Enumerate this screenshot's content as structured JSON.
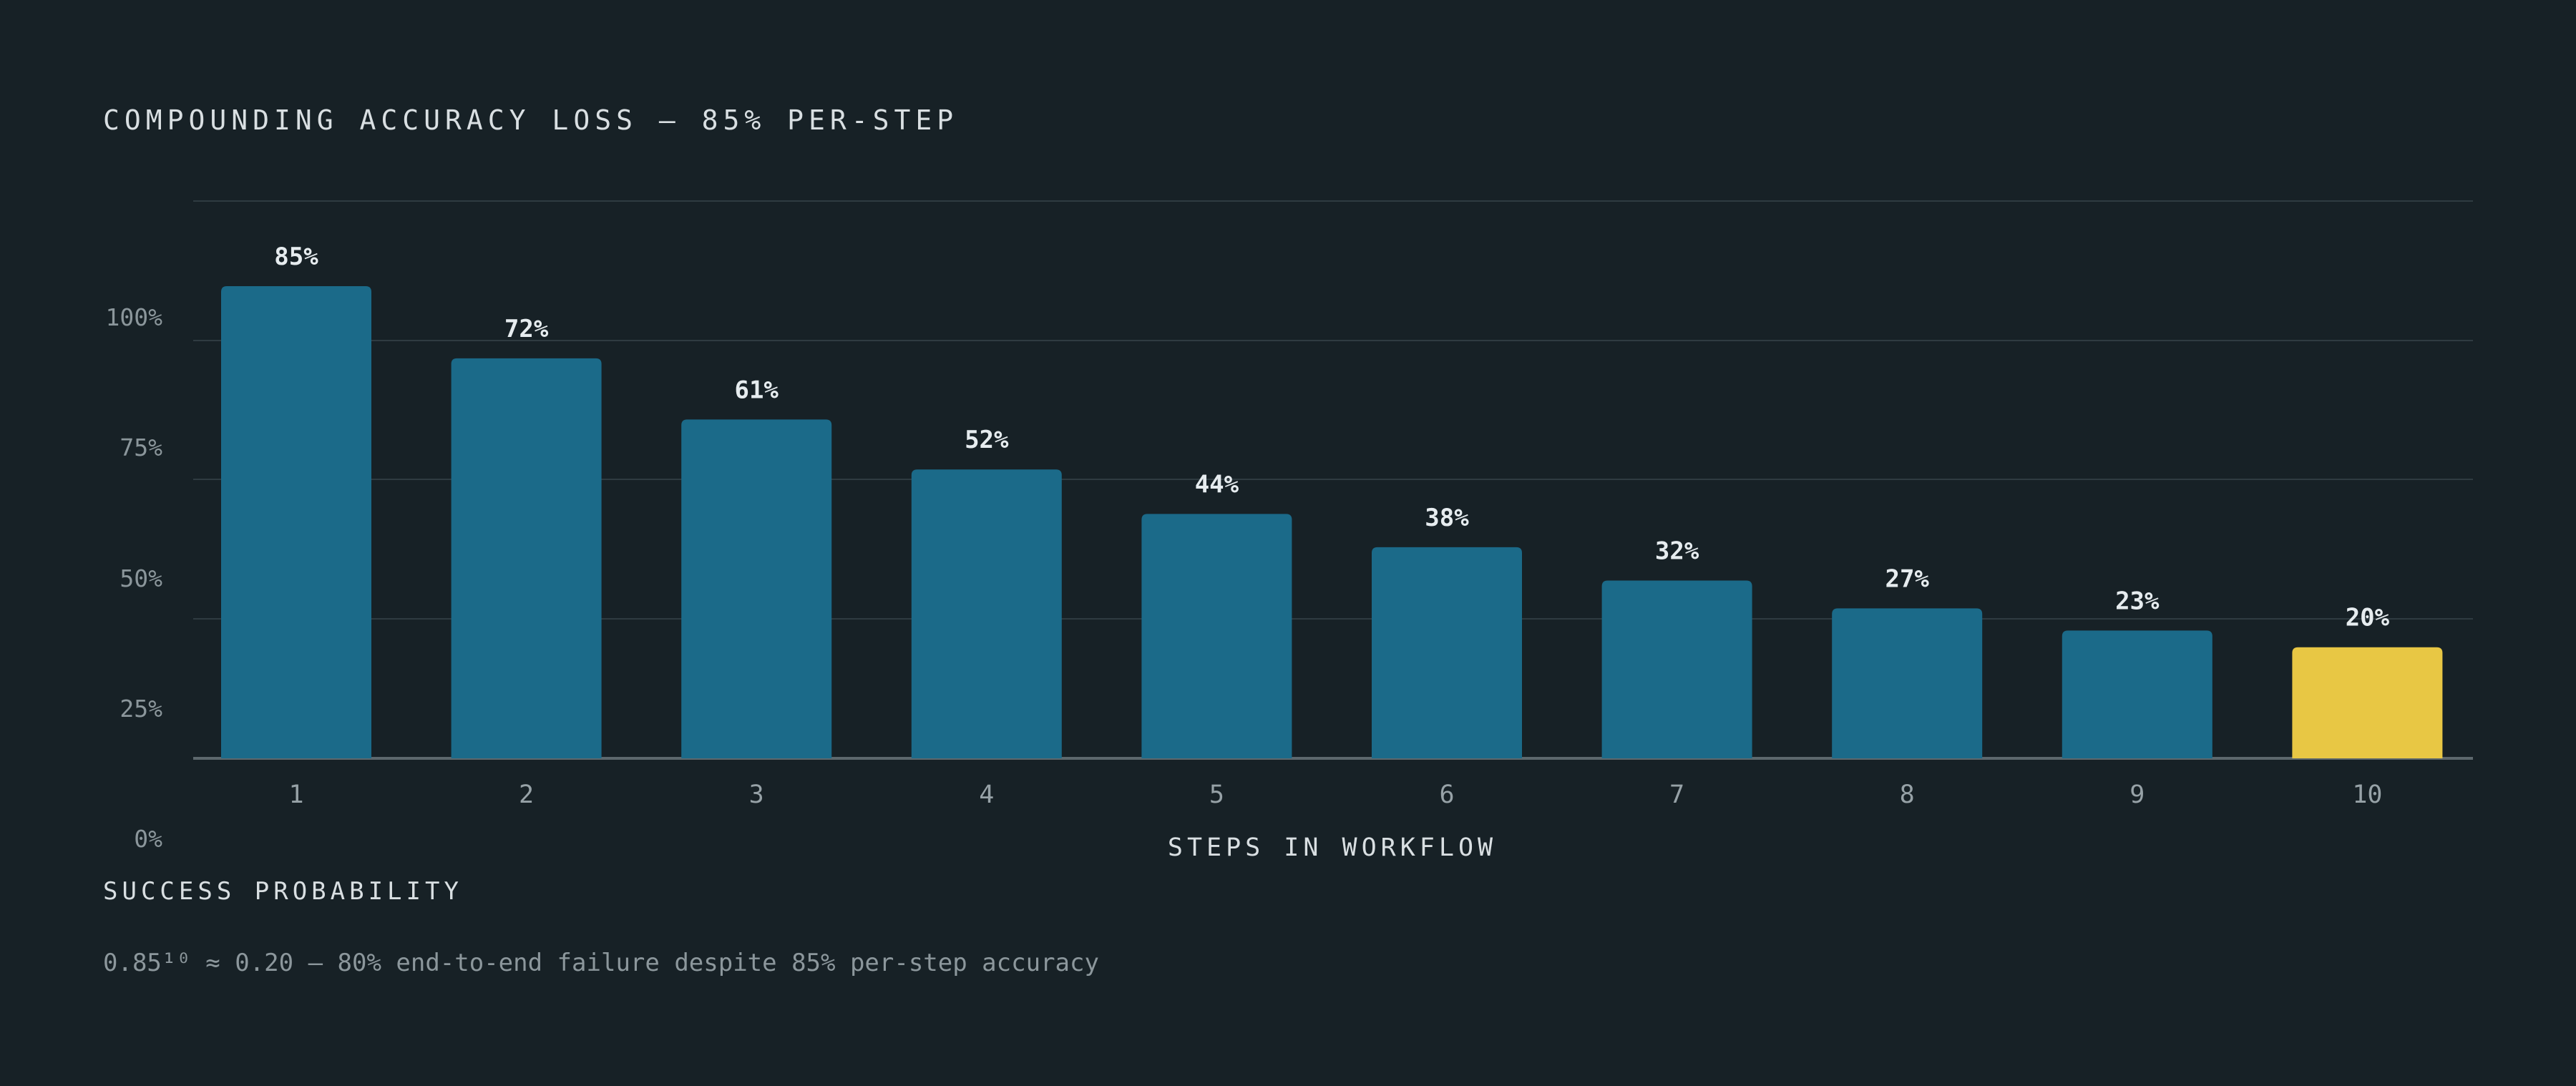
{
  "chart_data": {
    "type": "bar",
    "title": "COMPOUNDING ACCURACY LOSS — 85% PER-STEP",
    "xlabel": "STEPS IN WORKFLOW",
    "ylabel": "SUCCESS PROBABILITY",
    "categories": [
      "1",
      "2",
      "3",
      "4",
      "5",
      "6",
      "7",
      "8",
      "9",
      "10"
    ],
    "values": [
      85,
      72,
      61,
      52,
      44,
      38,
      32,
      27,
      23,
      20
    ],
    "data_labels": [
      "85%",
      "72%",
      "61%",
      "52%",
      "44%",
      "38%",
      "32%",
      "27%",
      "23%",
      "20%"
    ],
    "y_ticks": [
      "0%",
      "25%",
      "50%",
      "75%",
      "100%"
    ],
    "highlight_index": 9,
    "grid": true,
    "legend": "none",
    "colors": {
      "bar": "#1b6a89",
      "highlight": "#e8c744",
      "highlight_label": "#e8c744",
      "grid": "#2f3b41",
      "axis": "#5d686d",
      "background": "#172126"
    },
    "footnote": "0.85¹⁰ ≈ 0.20 — 80% end-to-end failure despite 85% per-step accuracy"
  }
}
